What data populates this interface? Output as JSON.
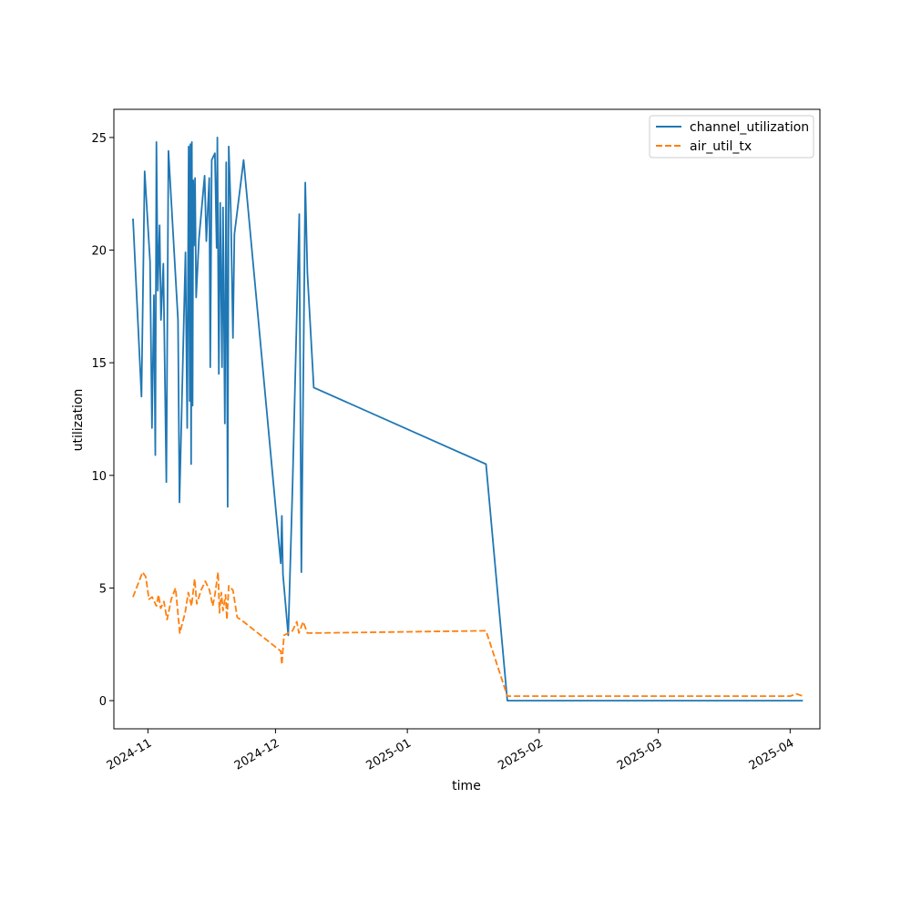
{
  "chart_data": {
    "type": "line",
    "title": "",
    "xlabel": "time",
    "ylabel": "utilization",
    "x_type": "date",
    "xlim": [
      "2024-10-24",
      "2025-04-08"
    ],
    "ylim": [
      -1.25,
      26.25
    ],
    "x_ticks": [
      "2024-11-01",
      "2024-12-01",
      "2025-01-01",
      "2025-02-01",
      "2025-03-01",
      "2025-04-01"
    ],
    "x_tick_labels": [
      "2024-11",
      "2024-12",
      "2025-01",
      "2025-02",
      "2025-03",
      "2025-04"
    ],
    "y_ticks": [
      0,
      5,
      10,
      15,
      20,
      25
    ],
    "grid": false,
    "legend_position": "top-right",
    "series": [
      {
        "name": "channel_utilization",
        "color": "#1f77b4",
        "dash": "solid",
        "points": [
          [
            "2024-10-28T12:00",
            21.4
          ],
          [
            "2024-10-30T12:00",
            13.5
          ],
          [
            "2024-10-31T06:00",
            23.5
          ],
          [
            "2024-11-01T12:00",
            19.5
          ],
          [
            "2024-11-01T23:00",
            12.1
          ],
          [
            "2024-11-02T10:00",
            18.0
          ],
          [
            "2024-11-02T18:00",
            10.9
          ],
          [
            "2024-11-03T00:00",
            24.8
          ],
          [
            "2024-11-03T08:00",
            18.2
          ],
          [
            "2024-11-03T18:00",
            21.1
          ],
          [
            "2024-11-04T02:00",
            16.9
          ],
          [
            "2024-11-04T15:00",
            19.4
          ],
          [
            "2024-11-05T08:00",
            9.7
          ],
          [
            "2024-11-05T20:00",
            24.4
          ],
          [
            "2024-11-08T02:00",
            16.9
          ],
          [
            "2024-11-08T10:00",
            8.8
          ],
          [
            "2024-11-09T20:00",
            19.9
          ],
          [
            "2024-11-10T06:00",
            12.1
          ],
          [
            "2024-11-10T14:00",
            24.6
          ],
          [
            "2024-11-10T20:00",
            13.3
          ],
          [
            "2024-11-11T00:00",
            24.7
          ],
          [
            "2024-11-11T04:00",
            10.5
          ],
          [
            "2024-11-11T08:00",
            24.8
          ],
          [
            "2024-11-11T12:00",
            13.1
          ],
          [
            "2024-11-11T16:00",
            23.1
          ],
          [
            "2024-11-11T20:00",
            20.2
          ],
          [
            "2024-11-12T02:00",
            23.2
          ],
          [
            "2024-11-12T08:00",
            17.9
          ],
          [
            "2024-11-13T00:00",
            20.5
          ],
          [
            "2024-11-14T08:00",
            23.3
          ],
          [
            "2024-11-14T18:00",
            20.4
          ],
          [
            "2024-11-15T10:00",
            23.2
          ],
          [
            "2024-11-15T16:00",
            14.8
          ],
          [
            "2024-11-16T00:00",
            24.0
          ],
          [
            "2024-11-16T18:00",
            24.3
          ],
          [
            "2024-11-17T04:00",
            20.1
          ],
          [
            "2024-11-17T08:00",
            25.0
          ],
          [
            "2024-11-17T16:00",
            14.5
          ],
          [
            "2024-11-18T00:00",
            22.1
          ],
          [
            "2024-11-18T10:00",
            14.8
          ],
          [
            "2024-11-18T16:00",
            21.9
          ],
          [
            "2024-11-19T02:00",
            12.3
          ],
          [
            "2024-11-19T10:00",
            23.9
          ],
          [
            "2024-11-19T18:00",
            8.6
          ],
          [
            "2024-11-20T00:00",
            24.6
          ],
          [
            "2024-11-20T12:00",
            21.7
          ],
          [
            "2024-11-21T00:00",
            16.1
          ],
          [
            "2024-11-21T08:00",
            20.7
          ],
          [
            "2024-11-23T12:00",
            24.0
          ],
          [
            "2024-12-02T06:00",
            6.1
          ],
          [
            "2024-12-02T12:00",
            8.2
          ],
          [
            "2024-12-02T18:00",
            5.6
          ],
          [
            "2024-12-04T00:00",
            2.9
          ],
          [
            "2024-12-05T00:00",
            9.5
          ],
          [
            "2024-12-06T14:00",
            21.6
          ],
          [
            "2024-12-07T02:00",
            5.7
          ],
          [
            "2024-12-08T00:00",
            23.0
          ],
          [
            "2024-12-08T12:00",
            19.0
          ],
          [
            "2024-12-10T00:00",
            13.9
          ],
          [
            "2025-01-19T12:00",
            10.5
          ],
          [
            "2025-01-24T12:00",
            0.0
          ],
          [
            "2025-04-04T00:00",
            0.0
          ]
        ]
      },
      {
        "name": "air_util_tx",
        "color": "#ff7f0e",
        "dash": "dashed",
        "points": [
          [
            "2024-10-28T12:00",
            4.6
          ],
          [
            "2024-10-30T18:00",
            5.7
          ],
          [
            "2024-10-31T12:00",
            5.5
          ],
          [
            "2024-11-01T06:00",
            4.5
          ],
          [
            "2024-11-02T00:00",
            4.6
          ],
          [
            "2024-11-02T12:00",
            4.4
          ],
          [
            "2024-11-03T00:00",
            4.2
          ],
          [
            "2024-11-03T12:00",
            4.7
          ],
          [
            "2024-11-04T00:00",
            4.1
          ],
          [
            "2024-11-04T18:00",
            4.4
          ],
          [
            "2024-11-05T12:00",
            3.6
          ],
          [
            "2024-11-06T12:00",
            4.5
          ],
          [
            "2024-11-07T12:00",
            5.0
          ],
          [
            "2024-11-08T12:00",
            3.0
          ],
          [
            "2024-11-09T18:00",
            3.9
          ],
          [
            "2024-11-10T12:00",
            4.8
          ],
          [
            "2024-11-11T06:00",
            4.2
          ],
          [
            "2024-11-12T00:00",
            5.4
          ],
          [
            "2024-11-12T12:00",
            4.3
          ],
          [
            "2024-11-13T12:00",
            4.9
          ],
          [
            "2024-11-14T12:00",
            5.3
          ],
          [
            "2024-11-15T12:00",
            4.9
          ],
          [
            "2024-11-16T06:00",
            4.2
          ],
          [
            "2024-11-16T18:00",
            4.7
          ],
          [
            "2024-11-17T12:00",
            5.7
          ],
          [
            "2024-11-17T20:00",
            3.9
          ],
          [
            "2024-11-18T06:00",
            4.8
          ],
          [
            "2024-11-18T16:00",
            4.0
          ],
          [
            "2024-11-19T06:00",
            4.7
          ],
          [
            "2024-11-19T14:00",
            3.6
          ],
          [
            "2024-11-20T00:00",
            5.1
          ],
          [
            "2024-11-21T00:00",
            4.9
          ],
          [
            "2024-11-22T00:00",
            3.7
          ],
          [
            "2024-11-23T12:00",
            3.5
          ],
          [
            "2024-12-02T06:00",
            2.2
          ],
          [
            "2024-12-02T12:00",
            1.6
          ],
          [
            "2024-12-03T00:00",
            2.9
          ],
          [
            "2024-12-05T00:00",
            3.1
          ],
          [
            "2024-12-06T00:00",
            3.5
          ],
          [
            "2024-12-06T12:00",
            3.0
          ],
          [
            "2024-12-07T12:00",
            3.5
          ],
          [
            "2024-12-08T12:00",
            3.0
          ],
          [
            "2024-12-10T00:00",
            3.0
          ],
          [
            "2025-01-19T12:00",
            3.1
          ],
          [
            "2025-01-24T12:00",
            0.2
          ],
          [
            "2025-04-01T00:00",
            0.2
          ],
          [
            "2025-04-02T12:00",
            0.3
          ],
          [
            "2025-04-04T00:00",
            0.2
          ]
        ]
      }
    ]
  }
}
